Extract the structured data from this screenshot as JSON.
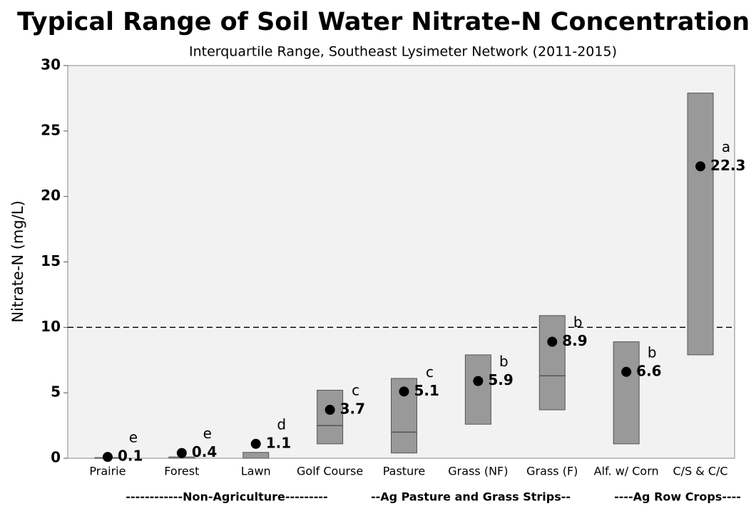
{
  "chart_data": {
    "type": "range",
    "title": "Typical Range of Soil Water Nitrate-N Concentrations",
    "subtitle": "Interquartile Range, Southeast Lysimeter Network (2011-2015)",
    "y_label": "Nitrate-N (mg/L)",
    "categories": [
      "Prairie",
      "Forest",
      "Lawn",
      "Golf Course",
      "Pasture",
      "Grass (NF)",
      "Grass (F)",
      "Alf. w/ Corn",
      "C/S & C/C"
    ],
    "q1": [
      0,
      0,
      0,
      1.1,
      0.4,
      2.6,
      3.7,
      1.1,
      7.9
    ],
    "q3": [
      0.05,
      0.1,
      0.45,
      5.2,
      6.1,
      7.9,
      10.9,
      8.9,
      27.9
    ],
    "median": [
      null,
      null,
      null,
      2.5,
      2.0,
      null,
      6.3,
      null,
      null
    ],
    "mean": [
      0.1,
      0.4,
      1.1,
      3.7,
      5.1,
      5.9,
      8.9,
      6.6,
      22.3
    ],
    "letters": [
      "e",
      "e",
      "d",
      "c",
      "c",
      "b",
      "b",
      "b",
      "a"
    ],
    "groups": [
      "------------Non-Agriculture---------",
      "--Ag Pasture and Grass Strips--",
      "----Ag Row Crops----"
    ],
    "reference_line": 10,
    "box_color": "#999999",
    "dot_color": "#000000",
    "ylim": [
      0,
      30
    ],
    "yticks": [
      0,
      5,
      10,
      15,
      20,
      25,
      30
    ]
  }
}
